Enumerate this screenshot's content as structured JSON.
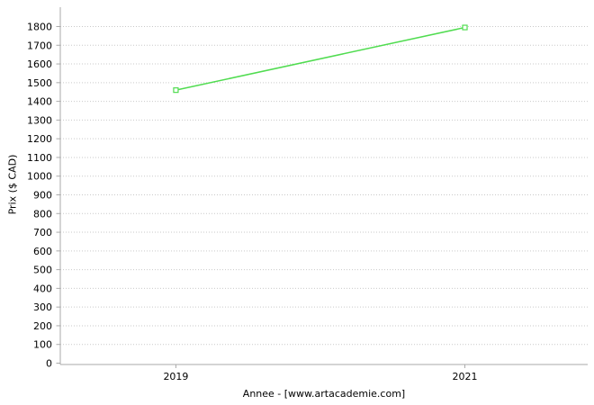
{
  "chart_data": {
    "type": "line",
    "title": "",
    "xlabel": "Annee - [www.artacademie.com]",
    "ylabel": "Prix ($ CAD)",
    "x": [
      2019,
      2021
    ],
    "categories": [
      "2019",
      "2021"
    ],
    "series": [
      {
        "name": "Prix",
        "values": [
          1460,
          1795
        ]
      }
    ],
    "yticks": [
      0,
      100,
      200,
      300,
      400,
      500,
      600,
      700,
      800,
      900,
      1000,
      1100,
      1200,
      1300,
      1400,
      1500,
      1600,
      1700,
      1800
    ],
    "ylim": [
      0,
      1900
    ],
    "grid": true,
    "legend_position": "none",
    "line_color": "#50dc50",
    "marker": "open-square",
    "marker_fill": "#ffffff",
    "axis_color": "#aaaaaa",
    "grid_color": "#c9c9c9",
    "text_color": "#000000"
  }
}
